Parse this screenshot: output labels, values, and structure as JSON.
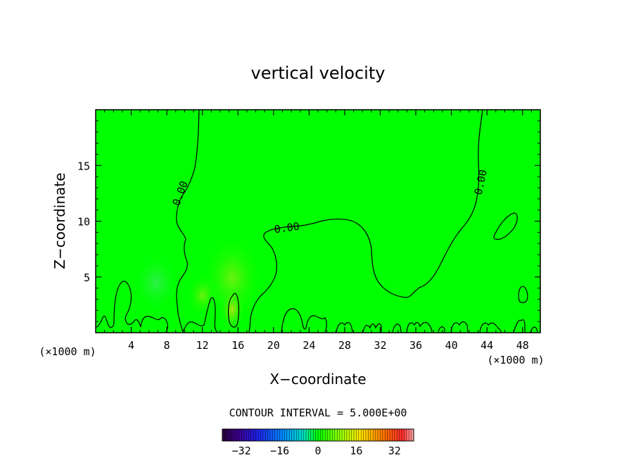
{
  "chart_data": {
    "type": "heatmap",
    "title": "vertical velocity",
    "xlabel": "X−coordinate",
    "ylabel": "Z−coordinate",
    "x_unit": "(×1000 m)",
    "x_unit_right": "(×1000 m)",
    "xlim": [
      0,
      50
    ],
    "ylim": [
      0,
      20
    ],
    "x_ticks": [
      4,
      8,
      12,
      16,
      20,
      24,
      28,
      32,
      36,
      40,
      44,
      48
    ],
    "y_ticks": [
      5,
      10,
      15
    ],
    "background_value": 0,
    "contour_labels": [
      {
        "text": "0.00",
        "x": 9.5,
        "y": 12.5
      },
      {
        "text": "0.00",
        "x": 21.5,
        "y": 9.4
      },
      {
        "text": "0.00",
        "x": 43.3,
        "y": 13.5
      }
    ],
    "contour_interval_text": "CONTOUR INTERVAL = 5.000E+00",
    "colorbar": {
      "range": [
        -40,
        40
      ],
      "tick_values": [
        -32,
        -16,
        0,
        16,
        32
      ],
      "tick_labels": [
        "−32",
        "−16",
        "0",
        "16",
        "32"
      ]
    },
    "colors": {
      "field_zero": "#00ff00",
      "contour_line": "#000000"
    }
  }
}
